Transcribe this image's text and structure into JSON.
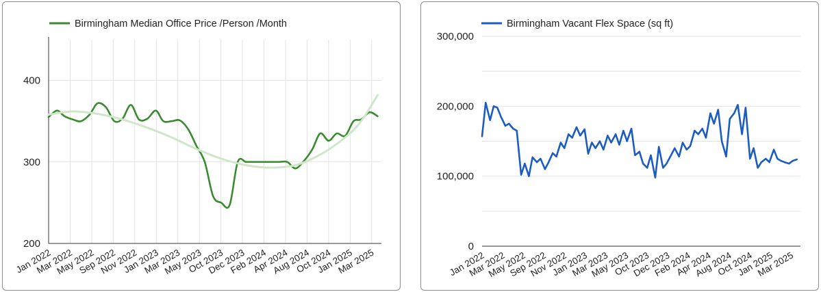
{
  "chart_data": [
    {
      "type": "line",
      "legend_position": "top-left",
      "grid": true,
      "x_axis_labels": [
        "Jan 2022",
        "Mar 2022",
        "May 2022",
        "Sep 2022",
        "Nov 2022",
        "Jan 2023",
        "Mar 2023",
        "May 2023",
        "Oct 2023",
        "Dec 2023",
        "Feb 2024",
        "Apr 2024",
        "Aug 2024",
        "Oct 2024",
        "Jan 2025",
        "Mar 2025"
      ],
      "ylim": [
        200,
        450
      ],
      "y_ticks": [
        200,
        300,
        400
      ],
      "y_tick_labels": [
        "200",
        "300",
        "400"
      ],
      "colors": {
        "series": "#3a8a30",
        "trend": "#cfe6c9"
      },
      "series": [
        {
          "name": "Birmingham Median Office Price /Person /Month",
          "values": [
            [
              "2022-01-01",
              355
            ],
            [
              "2022-02-01",
              363
            ],
            [
              "2022-03-01",
              356
            ],
            [
              "2022-04-01",
              352
            ],
            [
              "2022-05-01",
              350
            ],
            [
              "2022-06-01",
              358
            ],
            [
              "2022-07-01",
              372
            ],
            [
              "2022-08-01",
              367
            ],
            [
              "2022-09-01",
              350
            ],
            [
              "2022-10-01",
              353
            ],
            [
              "2022-11-01",
              370
            ],
            [
              "2022-12-01",
              352
            ],
            [
              "2023-01-01",
              353
            ],
            [
              "2023-02-01",
              363
            ],
            [
              "2023-03-01",
              350
            ],
            [
              "2023-04-01",
              350
            ],
            [
              "2023-05-01",
              351
            ],
            [
              "2023-06-01",
              340
            ],
            [
              "2023-07-01",
              320
            ],
            [
              "2023-08-01",
              300
            ],
            [
              "2023-09-01",
              258
            ],
            [
              "2023-10-01",
              250
            ],
            [
              "2023-11-01",
              247
            ],
            [
              "2023-12-01",
              300
            ],
            [
              "2024-01-01",
              300
            ],
            [
              "2024-02-01",
              300
            ],
            [
              "2024-03-01",
              300
            ],
            [
              "2024-04-01",
              300
            ],
            [
              "2024-05-01",
              300
            ],
            [
              "2024-06-01",
              300
            ],
            [
              "2024-07-01",
              292
            ],
            [
              "2024-08-01",
              301
            ],
            [
              "2024-09-01",
              315
            ],
            [
              "2024-10-01",
              335
            ],
            [
              "2024-11-01",
              326
            ],
            [
              "2024-12-01",
              335
            ],
            [
              "2025-01-01",
              332
            ],
            [
              "2025-02-01",
              350
            ],
            [
              "2025-03-01",
              352
            ],
            [
              "2025-04-01",
              361
            ],
            [
              "2025-05-01",
              356
            ]
          ]
        },
        {
          "role": "trendline",
          "values": [
            [
              "2022-01-01",
              358
            ],
            [
              "2022-04-01",
              362
            ],
            [
              "2022-07-01",
              359
            ],
            [
              "2022-10-01",
              352
            ],
            [
              "2023-01-01",
              342
            ],
            [
              "2023-04-01",
              330
            ],
            [
              "2023-07-01",
              316
            ],
            [
              "2023-10-01",
              304
            ],
            [
              "2024-01-01",
              296
            ],
            [
              "2024-04-01",
              293
            ],
            [
              "2024-07-01",
              296
            ],
            [
              "2024-10-01",
              309
            ],
            [
              "2025-01-01",
              330
            ],
            [
              "2025-03-01",
              350
            ],
            [
              "2025-05-01",
              382
            ]
          ]
        }
      ]
    },
    {
      "type": "line",
      "legend_position": "top-left",
      "grid": true,
      "x_axis_labels": [
        "Jan 2022",
        "Mar 2022",
        "May 2022",
        "Sep 2022",
        "Nov 2022",
        "Jan 2023",
        "Mar 2023",
        "May 2023",
        "Oct 2023",
        "Dec 2023",
        "Feb 2024",
        "Apr 2024",
        "Aug 2024",
        "Oct 2024",
        "Jan 2025",
        "Mar 2025"
      ],
      "ylim": [
        0,
        300000
      ],
      "y_ticks": [
        0,
        100000,
        200000,
        300000
      ],
      "y_tick_labels": [
        "0",
        "100,000",
        "200,000",
        "300,000"
      ],
      "colors": {
        "series": "#1a5cc4"
      },
      "series": [
        {
          "name": "Birmingham Vacant Flex Space (sq ft)",
          "values": [
            [
              "2022-01-01",
              157000
            ],
            [
              "2022-01-15",
              205000
            ],
            [
              "2022-02-01",
              180000
            ],
            [
              "2022-02-15",
              200000
            ],
            [
              "2022-03-01",
              198000
            ],
            [
              "2022-03-15",
              185000
            ],
            [
              "2022-04-01",
              172000
            ],
            [
              "2022-04-15",
              175000
            ],
            [
              "2022-05-01",
              168000
            ],
            [
              "2022-05-15",
              165000
            ],
            [
              "2022-06-01",
              102000
            ],
            [
              "2022-06-15",
              118000
            ],
            [
              "2022-07-01",
              100000
            ],
            [
              "2022-07-15",
              127000
            ],
            [
              "2022-08-01",
              120000
            ],
            [
              "2022-08-15",
              125000
            ],
            [
              "2022-09-01",
              110000
            ],
            [
              "2022-09-15",
              120000
            ],
            [
              "2022-10-01",
              133000
            ],
            [
              "2022-10-15",
              128000
            ],
            [
              "2022-11-01",
              148000
            ],
            [
              "2022-11-15",
              140000
            ],
            [
              "2022-12-01",
              160000
            ],
            [
              "2022-12-15",
              155000
            ],
            [
              "2023-01-01",
              170000
            ],
            [
              "2023-01-15",
              158000
            ],
            [
              "2023-02-01",
              167000
            ],
            [
              "2023-02-15",
              132000
            ],
            [
              "2023-03-01",
              148000
            ],
            [
              "2023-03-15",
              140000
            ],
            [
              "2023-04-01",
              150000
            ],
            [
              "2023-04-15",
              138000
            ],
            [
              "2023-05-01",
              158000
            ],
            [
              "2023-05-15",
              148000
            ],
            [
              "2023-06-01",
              160000
            ],
            [
              "2023-06-15",
              145000
            ],
            [
              "2023-07-01",
              165000
            ],
            [
              "2023-07-15",
              150000
            ],
            [
              "2023-08-01",
              168000
            ],
            [
              "2023-08-15",
              130000
            ],
            [
              "2023-09-01",
              135000
            ],
            [
              "2023-09-15",
              118000
            ],
            [
              "2023-10-01",
              112000
            ],
            [
              "2023-10-15",
              130000
            ],
            [
              "2023-11-01",
              98000
            ],
            [
              "2023-11-15",
              142000
            ],
            [
              "2023-12-01",
              112000
            ],
            [
              "2023-12-15",
              118000
            ],
            [
              "2024-01-01",
              130000
            ],
            [
              "2024-01-15",
              140000
            ],
            [
              "2024-02-01",
              128000
            ],
            [
              "2024-02-15",
              148000
            ],
            [
              "2024-03-01",
              138000
            ],
            [
              "2024-03-15",
              143000
            ],
            [
              "2024-04-01",
              165000
            ],
            [
              "2024-04-15",
              160000
            ],
            [
              "2024-05-01",
              168000
            ],
            [
              "2024-05-15",
              155000
            ],
            [
              "2024-06-01",
              190000
            ],
            [
              "2024-06-15",
              175000
            ],
            [
              "2024-07-01",
              195000
            ],
            [
              "2024-07-15",
              150000
            ],
            [
              "2024-08-01",
              128000
            ],
            [
              "2024-08-15",
              182000
            ],
            [
              "2024-09-01",
              190000
            ],
            [
              "2024-09-15",
              202000
            ],
            [
              "2024-10-01",
              160000
            ],
            [
              "2024-10-15",
              198000
            ],
            [
              "2024-11-01",
              125000
            ],
            [
              "2024-11-15",
              140000
            ],
            [
              "2024-12-01",
              112000
            ],
            [
              "2024-12-15",
              120000
            ],
            [
              "2025-01-01",
              125000
            ],
            [
              "2025-01-15",
              120000
            ],
            [
              "2025-02-01",
              138000
            ],
            [
              "2025-02-15",
              125000
            ],
            [
              "2025-03-01",
              122000
            ],
            [
              "2025-03-15",
              120000
            ],
            [
              "2025-04-01",
              118000
            ],
            [
              "2025-04-15",
              122000
            ],
            [
              "2025-05-01",
              124000
            ]
          ]
        }
      ]
    }
  ]
}
